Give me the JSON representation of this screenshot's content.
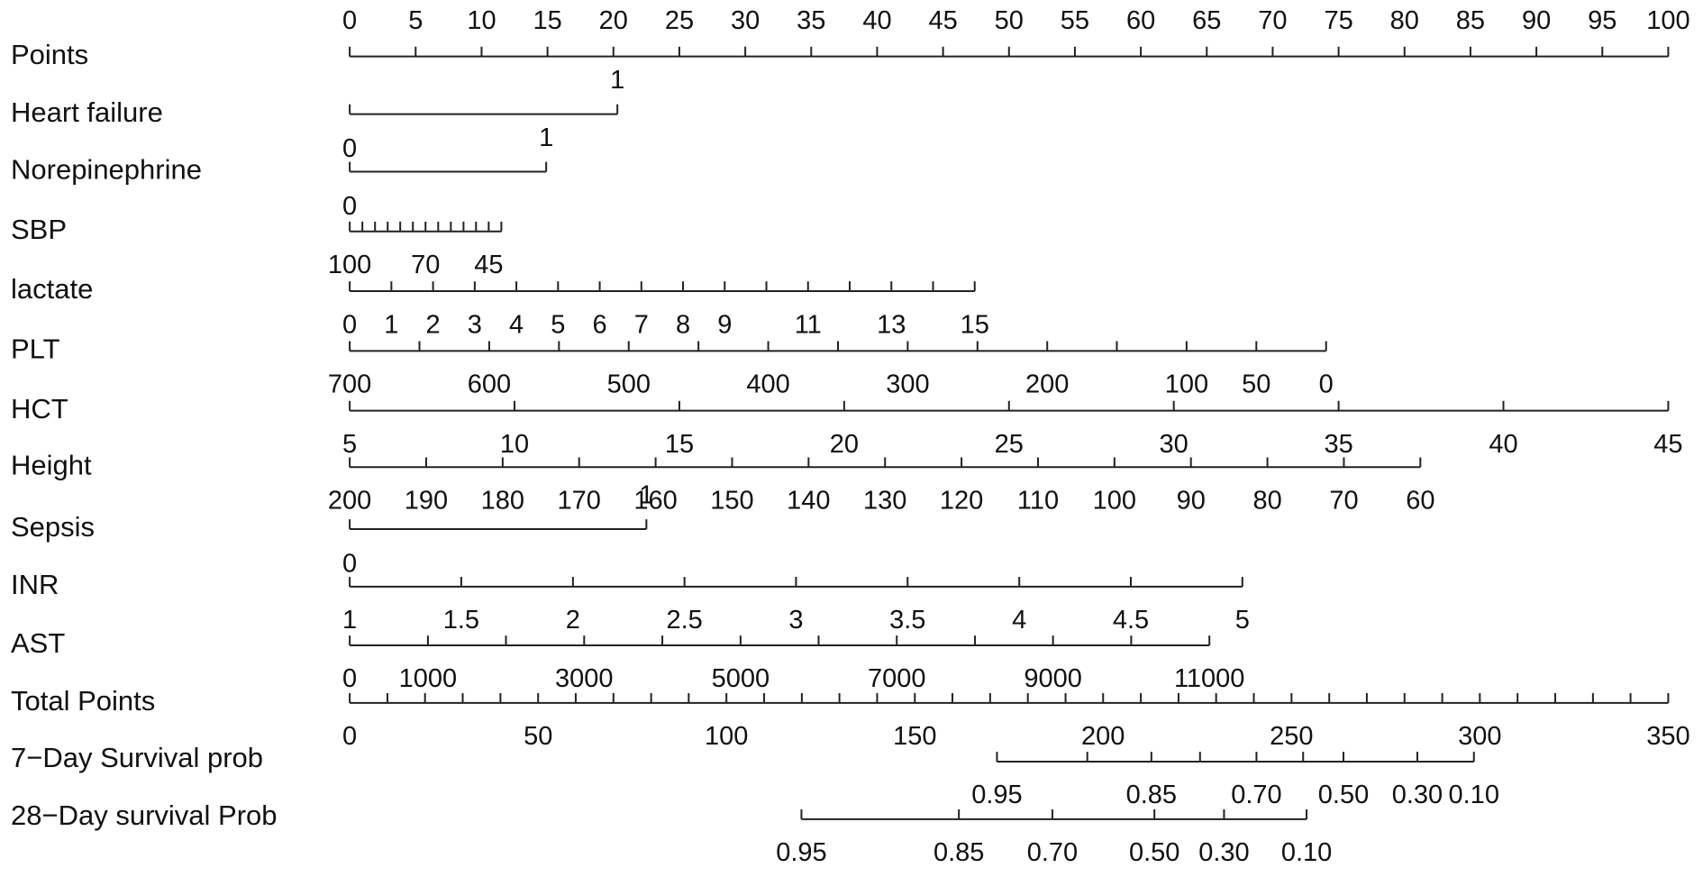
{
  "chart_data": {
    "type": "nomogram",
    "scales": [
      {
        "name": "Points",
        "ticks": [
          0,
          5,
          10,
          15,
          20,
          25,
          30,
          35,
          40,
          45,
          50,
          55,
          60,
          65,
          70,
          75,
          80,
          85,
          90,
          95,
          100
        ]
      },
      {
        "name": "Heart failure",
        "ticks": [
          {
            "value": 0,
            "points": 0
          },
          {
            "value": 1,
            "points": 20.3
          }
        ]
      },
      {
        "name": "Norepinephrine",
        "ticks": [
          {
            "value": 0,
            "points": 0
          },
          {
            "value": 1,
            "points": 14.9
          }
        ]
      },
      {
        "name": "SBP",
        "ticks": [
          {
            "value": 100,
            "points": 0
          },
          {
            "points": 0.96
          },
          {
            "points": 1.92
          },
          {
            "points": 2.88
          },
          {
            "points": 3.83
          },
          {
            "points": 4.79
          },
          {
            "value": 70,
            "points": 5.75
          },
          {
            "points": 6.71
          },
          {
            "points": 7.67
          },
          {
            "points": 8.63
          },
          {
            "points": 9.58
          },
          {
            "value": 45,
            "points": 10.54
          },
          {
            "points": 11.5
          }
        ]
      },
      {
        "name": "lactate",
        "ticks": [
          {
            "value": 0,
            "points": 0
          },
          {
            "value": 1,
            "points": 3.16
          },
          {
            "value": 2,
            "points": 6.32
          },
          {
            "value": 3,
            "points": 9.48
          },
          {
            "value": 4,
            "points": 12.64
          },
          {
            "value": 5,
            "points": 15.8
          },
          {
            "value": 6,
            "points": 18.96
          },
          {
            "value": 7,
            "points": 22.12
          },
          {
            "value": 8,
            "points": 25.28
          },
          {
            "value": 9,
            "points": 28.44
          },
          {
            "points": 31.6
          },
          {
            "value": 11,
            "points": 34.76
          },
          {
            "points": 37.92
          },
          {
            "value": 13,
            "points": 41.08
          },
          {
            "points": 44.24
          },
          {
            "value": 15,
            "points": 47.4
          }
        ]
      },
      {
        "name": "PLT",
        "ticks": [
          {
            "value": 700,
            "points": 0
          },
          {
            "points": 5.29
          },
          {
            "value": 600,
            "points": 10.58
          },
          {
            "points": 15.87
          },
          {
            "value": 500,
            "points": 21.16
          },
          {
            "points": 26.45
          },
          {
            "value": 400,
            "points": 31.74
          },
          {
            "points": 37.03
          },
          {
            "value": 300,
            "points": 42.32
          },
          {
            "points": 47.61
          },
          {
            "value": 200,
            "points": 52.9
          },
          {
            "points": 58.18
          },
          {
            "value": 100,
            "points": 63.47
          },
          {
            "value": 50,
            "points": 68.76
          },
          {
            "value": 0,
            "points": 74.05
          }
        ]
      },
      {
        "name": "HCT",
        "ticks": [
          {
            "value": 5,
            "points": 0
          },
          {
            "value": 10,
            "points": 12.5
          },
          {
            "value": 15,
            "points": 25
          },
          {
            "value": 20,
            "points": 37.5
          },
          {
            "value": 25,
            "points": 50
          },
          {
            "value": 30,
            "points": 62.5
          },
          {
            "value": 35,
            "points": 75
          },
          {
            "value": 40,
            "points": 87.5
          },
          {
            "value": 45,
            "points": 100
          }
        ]
      },
      {
        "name": "Height",
        "ticks": [
          {
            "value": 200,
            "points": 0
          },
          {
            "value": 190,
            "points": 5.8
          },
          {
            "value": 180,
            "points": 11.6
          },
          {
            "value": 170,
            "points": 17.4
          },
          {
            "value": 160,
            "points": 23.2
          },
          {
            "value": 150,
            "points": 29
          },
          {
            "value": 140,
            "points": 34.8
          },
          {
            "value": 130,
            "points": 40.6
          },
          {
            "value": 120,
            "points": 46.4
          },
          {
            "value": 110,
            "points": 52.2
          },
          {
            "value": 100,
            "points": 58
          },
          {
            "value": 90,
            "points": 63.8
          },
          {
            "value": 80,
            "points": 69.6
          },
          {
            "value": 70,
            "points": 75.4
          },
          {
            "value": 60,
            "points": 81.2
          }
        ]
      },
      {
        "name": "Sepsis",
        "ticks": [
          {
            "value": 0,
            "points": 0
          },
          {
            "value": 1,
            "points": 22.5
          }
        ]
      },
      {
        "name": "INR",
        "ticks": [
          {
            "value": 1,
            "points": 0
          },
          {
            "value": 1.5,
            "points": 8.46
          },
          {
            "value": 2,
            "points": 16.93
          },
          {
            "value": 2.5,
            "points": 25.39
          },
          {
            "value": 3,
            "points": 33.85
          },
          {
            "value": 3.5,
            "points": 42.31
          },
          {
            "value": 4,
            "points": 50.78
          },
          {
            "value": 4.5,
            "points": 59.24
          },
          {
            "value": 5,
            "points": 67.7
          }
        ]
      },
      {
        "name": "AST",
        "ticks": [
          {
            "value": 0,
            "points": 0
          },
          {
            "value": 1000,
            "points": 5.93
          },
          {
            "points": 11.85
          },
          {
            "value": 3000,
            "points": 17.78
          },
          {
            "points": 23.71
          },
          {
            "value": 5000,
            "points": 29.64
          },
          {
            "points": 35.56
          },
          {
            "value": 7000,
            "points": 41.49
          },
          {
            "points": 47.42
          },
          {
            "value": 9000,
            "points": 53.34
          },
          {
            "points": 59.27
          },
          {
            "value": 11000,
            "points": 65.2
          }
        ]
      },
      {
        "name": "Total Points",
        "ticks": [
          {
            "value": 0,
            "points": 0
          },
          {
            "points": 2.86
          },
          {
            "points": 5.71
          },
          {
            "points": 8.57
          },
          {
            "points": 11.43
          },
          {
            "value": 50,
            "points": 14.29
          },
          {
            "points": 17.14
          },
          {
            "points": 20
          },
          {
            "points": 22.86
          },
          {
            "points": 25.71
          },
          {
            "value": 100,
            "points": 28.57
          },
          {
            "points": 31.43
          },
          {
            "points": 34.29
          },
          {
            "points": 37.14
          },
          {
            "points": 40
          },
          {
            "value": 150,
            "points": 42.86
          },
          {
            "points": 45.71
          },
          {
            "points": 48.57
          },
          {
            "points": 51.43
          },
          {
            "points": 54.29
          },
          {
            "value": 200,
            "points": 57.14
          },
          {
            "points": 60
          },
          {
            "points": 62.86
          },
          {
            "points": 65.71
          },
          {
            "points": 68.57
          },
          {
            "value": 250,
            "points": 71.43
          },
          {
            "points": 74.29
          },
          {
            "points": 77.14
          },
          {
            "points": 80
          },
          {
            "points": 82.86
          },
          {
            "value": 300,
            "points": 85.71
          },
          {
            "points": 88.57
          },
          {
            "points": 91.43
          },
          {
            "points": 94.29
          },
          {
            "points": 97.14
          },
          {
            "value": 350,
            "points": 100
          }
        ]
      },
      {
        "name": "7−Day Survival prob",
        "ticks": [
          {
            "value": 0.95,
            "points": 49.09
          },
          {
            "points": 55.94
          },
          {
            "value": 0.85,
            "points": 60.8
          },
          {
            "points": 64.49
          },
          {
            "value": 0.7,
            "label": "0.70",
            "points": 68.77
          },
          {
            "points": 72.31
          },
          {
            "value": 0.5,
            "label": "0.50",
            "points": 75.37
          },
          {
            "value": 0.3,
            "label": "0.30",
            "points": 80.97
          },
          {
            "value": 0.1,
            "label": "0.10",
            "points": 85.26
          }
        ]
      },
      {
        "name": "28−Day survival Prob",
        "ticks": [
          {
            "value": 0.95,
            "points": 34.26
          },
          {
            "value": 0.85,
            "points": 46.2
          },
          {
            "value": 0.7,
            "label": "0.70",
            "points": 53.29
          },
          {
            "value": 0.5,
            "label": "0.50",
            "points": 61.03
          },
          {
            "value": 0.3,
            "label": "0.30",
            "points": 66.31
          },
          {
            "value": 0.1,
            "label": "0.10",
            "points": 72.57
          }
        ]
      }
    ]
  }
}
